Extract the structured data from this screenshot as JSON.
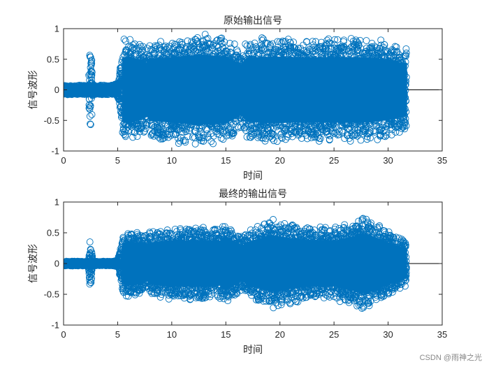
{
  "chart_data": [
    {
      "type": "scatter",
      "title": "原始输出信号",
      "xlabel": "时间",
      "ylabel": "信号波形",
      "xlim": [
        0,
        35
      ],
      "ylim": [
        -1,
        1
      ],
      "xticks": [
        "0",
        "5",
        "10",
        "15",
        "20",
        "25",
        "30",
        "35"
      ],
      "yticks": [
        "-1",
        "-0.5",
        "0",
        "0.5",
        "1"
      ],
      "marker": "open-circle",
      "color": "#0072BD",
      "grid": false,
      "signal_end": 31.7,
      "envelope": {
        "t": [
          0,
          2.3,
          2.4,
          2.5,
          2.6,
          2.7,
          4.6,
          5.0,
          5.3,
          5.5,
          6.0,
          7.0,
          7.8,
          8.0,
          9.5,
          12.5,
          15.0,
          16.5,
          17.0,
          19.5,
          22.0,
          25.0,
          28.0,
          30.0,
          31.0,
          31.7
        ],
        "amplitude": [
          0.08,
          0.08,
          0.6,
          0.65,
          0.5,
          0.08,
          0.08,
          0.12,
          0.45,
          0.85,
          0.88,
          0.8,
          0.7,
          0.82,
          0.85,
          0.93,
          0.88,
          0.65,
          0.85,
          0.88,
          0.86,
          0.86,
          0.86,
          0.8,
          0.72,
          0.7
        ]
      }
    },
    {
      "type": "scatter",
      "title": "最终的输出信号",
      "xlabel": "时间",
      "ylabel": "信号波形",
      "xlim": [
        0,
        35
      ],
      "ylim": [
        -1,
        1
      ],
      "xticks": [
        "0",
        "5",
        "10",
        "15",
        "20",
        "25",
        "30",
        "35"
      ],
      "yticks": [
        "-1",
        "-0.5",
        "0",
        "0.5",
        "1"
      ],
      "marker": "open-circle",
      "color": "#0072BD",
      "grid": false,
      "signal_end": 31.7,
      "envelope": {
        "t": [
          0,
          2.3,
          2.4,
          2.5,
          2.6,
          2.7,
          4.6,
          5.0,
          5.3,
          5.5,
          6.0,
          7.0,
          7.8,
          8.0,
          9.5,
          12.5,
          14.5,
          15.0,
          16.5,
          17.0,
          19.2,
          22.0,
          25.0,
          28.0,
          30.0,
          31.0,
          31.7
        ],
        "amplitude": [
          0.04,
          0.04,
          0.35,
          0.38,
          0.3,
          0.04,
          0.04,
          0.06,
          0.3,
          0.52,
          0.58,
          0.55,
          0.45,
          0.55,
          0.6,
          0.62,
          0.58,
          0.7,
          0.45,
          0.55,
          0.75,
          0.62,
          0.6,
          0.78,
          0.55,
          0.45,
          0.38
        ]
      }
    }
  ],
  "watermark": "CSDN @雨神之光"
}
